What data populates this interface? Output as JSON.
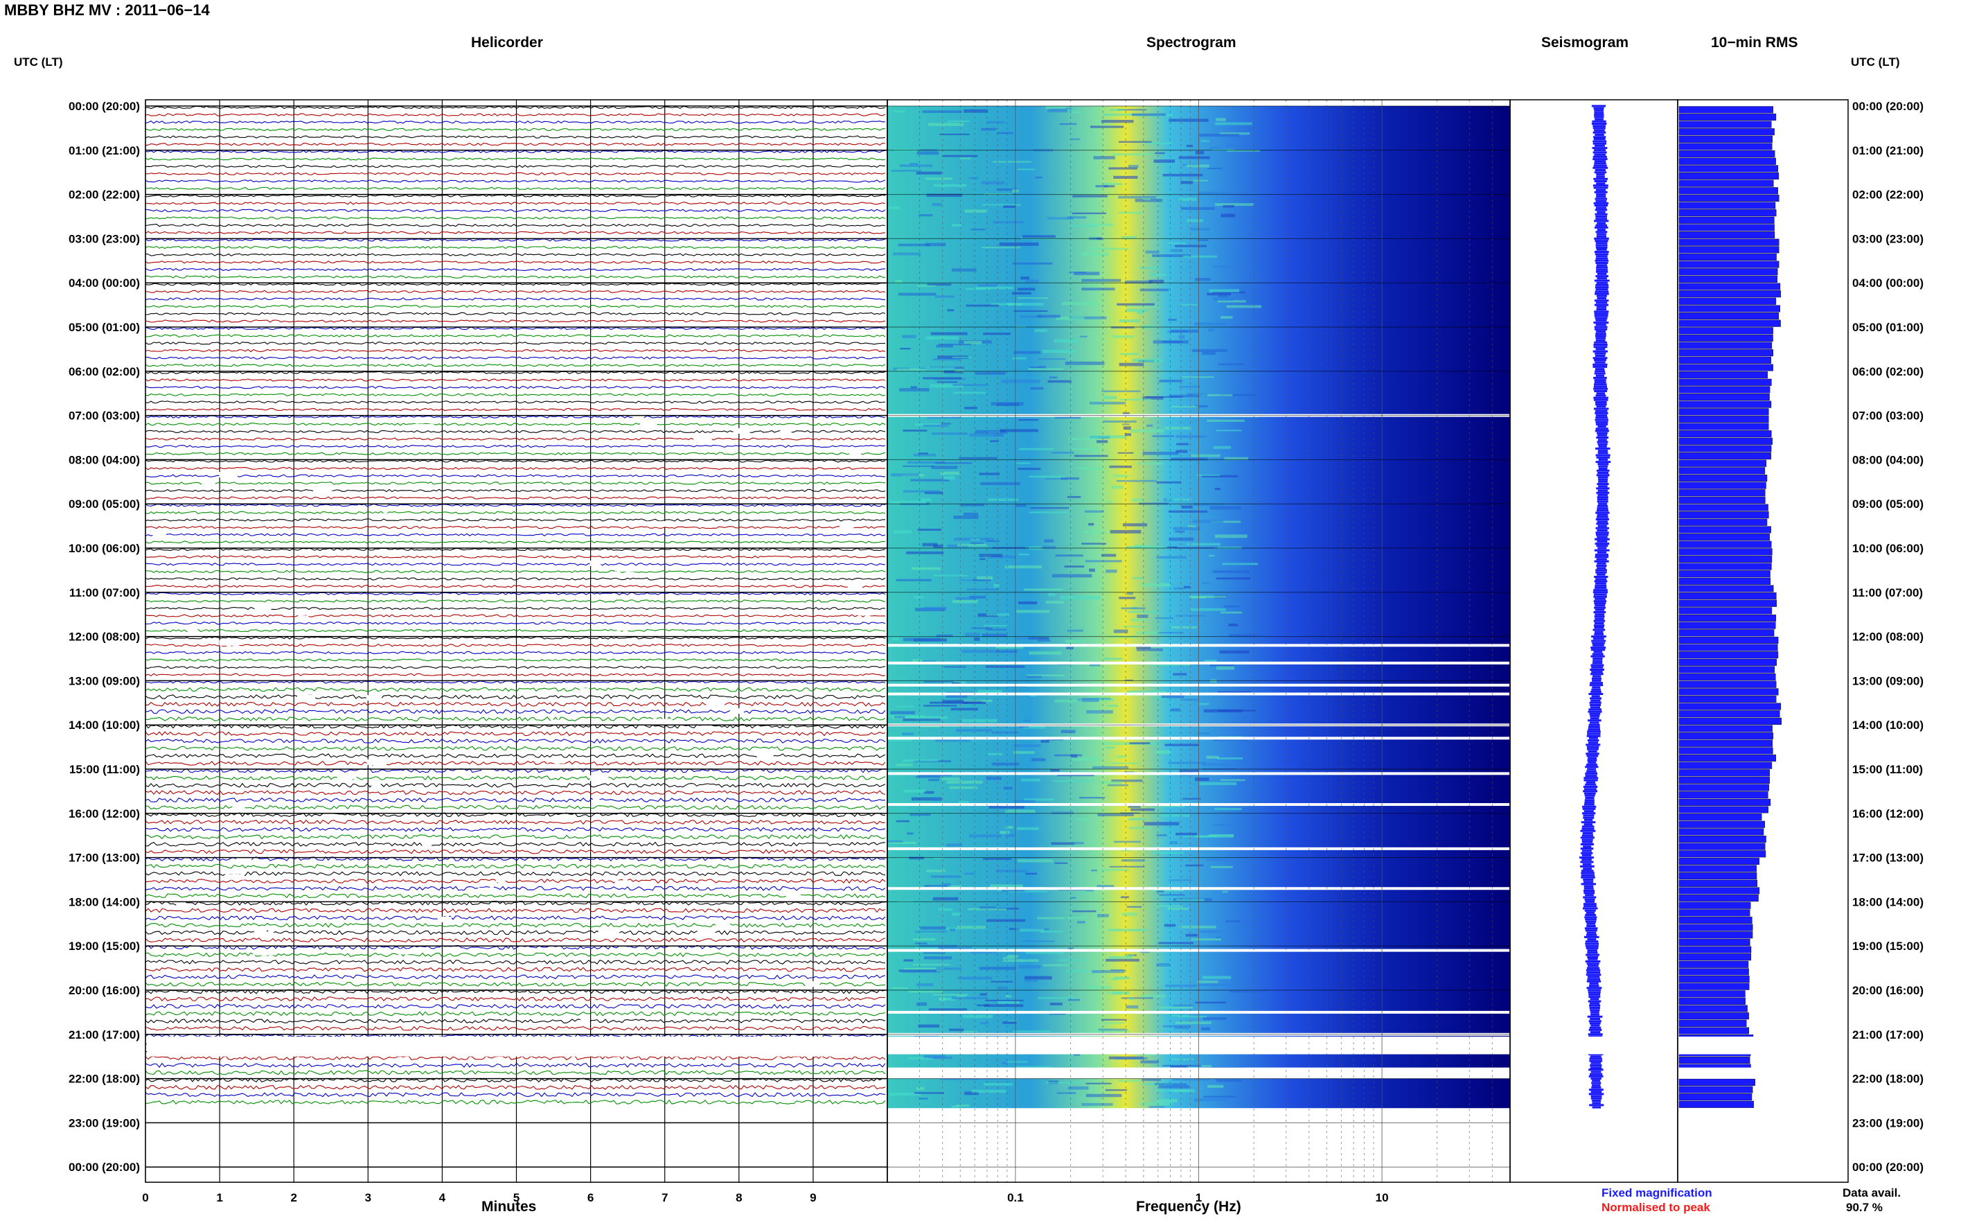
{
  "header": {
    "station_title": "MBBY BHZ MV : 2011−06−14",
    "utc_left": "UTC (LT)",
    "utc_right": "UTC (LT)"
  },
  "panels": {
    "helicorder": "Helicorder",
    "spectrogram": "Spectrogram",
    "seismogram": "Seismogram",
    "rms": "10−min RMS"
  },
  "axes": {
    "minutes_label": "Minutes",
    "frequency_label": "Frequency (Hz)"
  },
  "footer": {
    "fixed_magnification": "Fixed magnification",
    "normalised_to_peak": "Normalised to peak",
    "data_avail_label": "Data avail.",
    "data_avail_value": "90.7 %"
  },
  "colors": {
    "trace_cycle": [
      "#000000",
      "#b00000",
      "#0000c8",
      "#009000"
    ],
    "spectrogram_low": "#00007a",
    "spectrogram_mid": "#3fd0c8",
    "spectrogram_high": "#e8e83a",
    "seismogram": "#1a1aff",
    "rms_bar": "#1a1aff",
    "fixed_magnification": "#1a1aff",
    "normalised_to_peak": "#ff1a1a"
  },
  "chart_data": [
    {
      "type": "line",
      "name": "helicorder",
      "title": "Helicorder",
      "xlabel": "Minutes",
      "ylabel": "UTC (LT)",
      "x_ticks": [
        0,
        1,
        2,
        3,
        4,
        5,
        6,
        7,
        8,
        9
      ],
      "xlim": [
        0,
        10
      ],
      "hour_labels_left": [
        "00:00 (20:00)",
        "01:00 (21:00)",
        "02:00 (22:00)",
        "03:00 (23:00)",
        "04:00 (00:00)",
        "05:00 (01:00)",
        "06:00 (02:00)",
        "07:00 (03:00)",
        "08:00 (04:00)",
        "09:00 (05:00)",
        "10:00 (06:00)",
        "11:00 (07:00)",
        "12:00 (08:00)",
        "13:00 (09:00)",
        "14:00 (10:00)",
        "15:00 (11:00)",
        "16:00 (12:00)",
        "17:00 (13:00)",
        "18:00 (14:00)",
        "19:00 (15:00)",
        "20:00 (16:00)",
        "21:00 (17:00)",
        "22:00 (18:00)",
        "23:00 (19:00)",
        "00:00 (20:00)"
      ],
      "trace_minutes": 10,
      "data_end_hour": 22.67,
      "grid": true
    },
    {
      "type": "heatmap",
      "name": "spectrogram",
      "title": "Spectrogram",
      "xlabel": "Frequency (Hz)",
      "x_scale": "log",
      "x_tick_labels": [
        "0.1",
        "1",
        "10"
      ],
      "xlim": [
        0.02,
        50
      ],
      "peak_frequency_hz": 0.4,
      "gap_hours": [
        7.0,
        12.2,
        12.6,
        13.1,
        13.3,
        14.0,
        14.3,
        15.1,
        15.8,
        16.8,
        17.7,
        19.1,
        20.5,
        21.0,
        21.3
      ],
      "missing_hours": [
        [
          21.05,
          21.45
        ],
        [
          21.75,
          22.0
        ],
        [
          22.67,
          24.0
        ]
      ],
      "grid": true
    },
    {
      "type": "line",
      "name": "seismogram",
      "title": "Seismogram",
      "description_hours": [
        0,
        2,
        4,
        6,
        8,
        10,
        12,
        14,
        16,
        17,
        18,
        19,
        20,
        21,
        22.67
      ],
      "offset_values": [
        0.0,
        0.2,
        0.3,
        0.1,
        0.4,
        0.3,
        0.0,
        -0.4,
        -0.9,
        -1.1,
        -0.8,
        -0.6,
        -0.4,
        -0.3,
        -0.2
      ]
    },
    {
      "type": "bar",
      "name": "rms",
      "title": "10−min RMS",
      "interval_minutes": 10,
      "hours_shown": [
        0,
        22.67
      ],
      "relative_levels": [
        0.95,
        0.97,
        0.98,
        1.0,
        0.99,
        0.93,
        0.9,
        0.92,
        0.88,
        0.9,
        0.92,
        0.95,
        0.97,
        1.0,
        0.94,
        0.9,
        0.85,
        0.78,
        0.72,
        0.7,
        0.68,
        0.72,
        0.74
      ]
    }
  ]
}
